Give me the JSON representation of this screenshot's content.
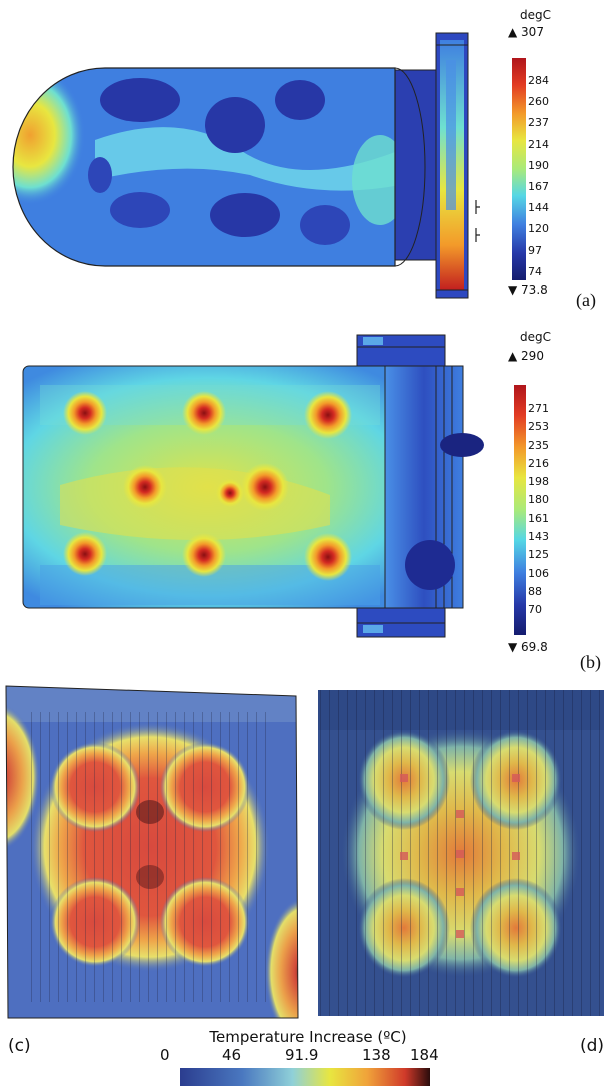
{
  "panels": {
    "a": {
      "label": "(a)",
      "legend": {
        "unit": "degC",
        "max": "▲ 307",
        "min": "▼ 73.8",
        "ticks": [
          "284",
          "260",
          "237",
          "214",
          "190",
          "167",
          "144",
          "120",
          "97",
          "74"
        ]
      }
    },
    "b": {
      "label": "(b)",
      "legend": {
        "unit": "degC",
        "max": "▲ 290",
        "min": "▼ 69.8",
        "ticks": [
          "271",
          "253",
          "235",
          "216",
          "198",
          "180",
          "161",
          "143",
          "125",
          "106",
          "88",
          "70"
        ]
      }
    },
    "c": {
      "label": "(c)"
    },
    "d": {
      "label": "(d)"
    }
  },
  "bottom_legend": {
    "title": "Temperature Increase (ºC)",
    "ticks": [
      "0",
      "46",
      "91.9",
      "138",
      "184"
    ]
  },
  "colors": {
    "cold": "#1f2f9c",
    "cool": "#3f7fe0",
    "mid": "#6ee0d0",
    "warm": "#e8e640",
    "hot": "#f39a2a",
    "hottest": "#c21f1f"
  }
}
